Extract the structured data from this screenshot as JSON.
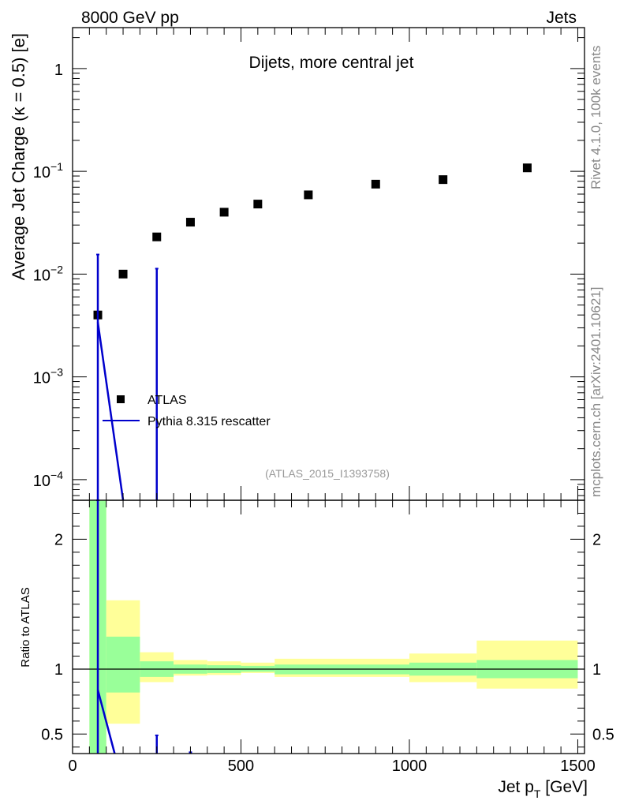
{
  "header": {
    "left": "8000 GeV pp",
    "right": "Jets"
  },
  "side_text": {
    "rivet": "Rivet 4.1.0,  100k events",
    "mcplots": "mcplots.cern.ch [arXiv:2401.10621]"
  },
  "chart_data": [
    {
      "type": "scatter",
      "title": "Dijets, more central jet",
      "watermark": "(ATLAS_2015_I1393758)",
      "xlabel_main": "Jet p",
      "xlabel_sub": "T",
      "xlabel_unit": " [GeV]",
      "ylabel": "Average Jet Charge (κ = 0.5) [e]",
      "yscale": "log",
      "xlim": [
        0,
        1520
      ],
      "ylim": [
        6.3e-05,
        2.5
      ],
      "y_ticks": [
        {
          "value": 1,
          "base": "1",
          "exp": ""
        },
        {
          "value": 0.1,
          "base": "10",
          "exp": "−1"
        },
        {
          "value": 0.01,
          "base": "10",
          "exp": "−2"
        },
        {
          "value": 0.001,
          "base": "10",
          "exp": "−3"
        },
        {
          "value": 0.0001,
          "base": "10",
          "exp": "−4"
        }
      ],
      "legend": [
        {
          "label": "ATLAS",
          "marker": "square",
          "color": "#000000"
        },
        {
          "label": "Pythia 8.315 rescatter",
          "marker": "line",
          "color": "#0000cc"
        }
      ],
      "series": [
        {
          "name": "ATLAS",
          "x": [
            75,
            150,
            250,
            350,
            450,
            550,
            700,
            900,
            1100,
            1350
          ],
          "y": [
            0.004,
            0.01,
            0.023,
            0.032,
            0.04,
            0.048,
            0.059,
            0.075,
            0.083,
            0.108
          ]
        },
        {
          "name": "Pythia 8.315 rescatter",
          "x": [
            75,
            150
          ],
          "y": [
            0.0034,
            6e-05
          ],
          "error_bars": [
            {
              "x": 75,
              "upper": 0.0155,
              "lower": 6e-05
            },
            {
              "x": 250,
              "upper": 0.0113,
              "lower": 6e-05
            }
          ]
        }
      ]
    },
    {
      "type": "area",
      "ylabel": "Ratio to ATLAS",
      "xlabel": "Jet pT [GeV]",
      "xlim": [
        0,
        1520
      ],
      "ylim": [
        0.35,
        2.3
      ],
      "x_ticks": [
        0,
        500,
        1000,
        1500
      ],
      "y_ticks": [
        0.5,
        1,
        2
      ],
      "reference_line": 1,
      "bands": [
        {
          "x0": 50,
          "x1": 100,
          "inner": [
            0.35,
            2.3
          ],
          "outer": [
            0.35,
            2.3
          ]
        },
        {
          "x0": 100,
          "x1": 200,
          "inner": [
            0.82,
            1.25
          ],
          "outer": [
            0.58,
            1.53
          ]
        },
        {
          "x0": 200,
          "x1": 300,
          "inner": [
            0.94,
            1.06
          ],
          "outer": [
            0.9,
            1.13
          ]
        },
        {
          "x0": 300,
          "x1": 400,
          "inner": [
            0.965,
            1.035
          ],
          "outer": [
            0.95,
            1.07
          ]
        },
        {
          "x0": 400,
          "x1": 500,
          "inner": [
            0.97,
            1.03
          ],
          "outer": [
            0.955,
            1.06
          ]
        },
        {
          "x0": 500,
          "x1": 600,
          "inner": [
            0.98,
            1.025
          ],
          "outer": [
            0.97,
            1.05
          ]
        },
        {
          "x0": 600,
          "x1": 1000,
          "inner": [
            0.96,
            1.035
          ],
          "outer": [
            0.94,
            1.08
          ]
        },
        {
          "x0": 1000,
          "x1": 1200,
          "inner": [
            0.95,
            1.05
          ],
          "outer": [
            0.9,
            1.12
          ]
        },
        {
          "x0": 1200,
          "x1": 1500,
          "inner": [
            0.93,
            1.07
          ],
          "outer": [
            0.85,
            1.22
          ]
        }
      ],
      "series": [
        {
          "name": "Pythia 8.315 rescatter",
          "x": [
            75,
            125
          ],
          "y": [
            0.84,
            0.35
          ]
        }
      ],
      "error_bars": [
        {
          "x": 75,
          "lower": 0.35,
          "upper": 2.3
        },
        {
          "x": 250,
          "lower": 0.35,
          "upper": 0.49
        },
        {
          "x": 350,
          "lower": 0.35,
          "upper": 0.36
        }
      ]
    }
  ]
}
